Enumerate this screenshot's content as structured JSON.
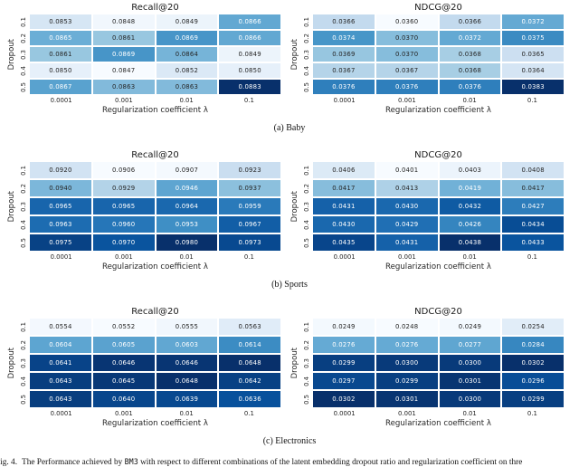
{
  "figure": {
    "subcaptions": [
      "(a) Baby",
      "(b) Sports",
      "(c) Electronics"
    ],
    "caption": {
      "label": "Fig. 4.",
      "before": "The Performance achieved by ",
      "model": "BM3",
      "after": " with respect to different combinations of the latent embedding dropout ratio and regularization coefficient on thre"
    }
  },
  "palette": {
    "colormap": "Blues",
    "blues_stops": [
      "#f7fbff",
      "#deebf7",
      "#c6dbef",
      "#9ecae1",
      "#6baed6",
      "#4292c6",
      "#2171b5",
      "#08519c",
      "#08306b"
    ],
    "dark_text": "#262626",
    "light_text": "#ffffff",
    "cell_gap": "#ffffff"
  },
  "chart_data": [
    {
      "type": "heatmap",
      "group": "Baby",
      "title": "Recall@20",
      "xlabel": "Regularization coefficient λ",
      "ylabel": "Dropout",
      "x": [
        "0.0001",
        "0.001",
        "0.01",
        "0.1"
      ],
      "y": [
        "0.1",
        "0.2",
        "0.3",
        "0.4",
        "0.5"
      ],
      "values": [
        [
          0.0853,
          0.0848,
          0.0849,
          0.0866
        ],
        [
          0.0865,
          0.0861,
          0.0869,
          0.0866
        ],
        [
          0.0861,
          0.0869,
          0.0864,
          0.0849
        ],
        [
          0.085,
          0.0847,
          0.0852,
          0.085
        ],
        [
          0.0867,
          0.0863,
          0.0863,
          0.0883
        ]
      ]
    },
    {
      "type": "heatmap",
      "group": "Baby",
      "title": "NDCG@20",
      "xlabel": "Regularization coefficient λ",
      "ylabel": "Dropout",
      "x": [
        "0.0001",
        "0.001",
        "0.01",
        "0.1"
      ],
      "y": [
        "0.1",
        "0.2",
        "0.3",
        "0.4",
        "0.5"
      ],
      "values": [
        [
          0.0366,
          0.036,
          0.0366,
          0.0372
        ],
        [
          0.0374,
          0.037,
          0.0372,
          0.0375
        ],
        [
          0.0369,
          0.037,
          0.0368,
          0.0365
        ],
        [
          0.0367,
          0.0367,
          0.0368,
          0.0364
        ],
        [
          0.0376,
          0.0376,
          0.0376,
          0.0383
        ]
      ]
    },
    {
      "type": "heatmap",
      "group": "Sports",
      "title": "Recall@20",
      "xlabel": "Regularization coefficient λ",
      "ylabel": "Dropout",
      "x": [
        "0.0001",
        "0.001",
        "0.01",
        "0.1"
      ],
      "y": [
        "0.1",
        "0.2",
        "0.3",
        "0.4",
        "0.5"
      ],
      "values": [
        [
          0.092,
          0.0906,
          0.0907,
          0.0923
        ],
        [
          0.094,
          0.0929,
          0.0946,
          0.0937
        ],
        [
          0.0965,
          0.0965,
          0.0964,
          0.0959
        ],
        [
          0.0963,
          0.096,
          0.0953,
          0.0967
        ],
        [
          0.0975,
          0.097,
          0.098,
          0.0973
        ]
      ]
    },
    {
      "type": "heatmap",
      "group": "Sports",
      "title": "NDCG@20",
      "xlabel": "Regularization coefficient λ",
      "ylabel": "Dropout",
      "x": [
        "0.0001",
        "0.001",
        "0.01",
        "0.1"
      ],
      "y": [
        "0.1",
        "0.2",
        "0.3",
        "0.4",
        "0.5"
      ],
      "values": [
        [
          0.0406,
          0.0401,
          0.0403,
          0.0408
        ],
        [
          0.0417,
          0.0413,
          0.0419,
          0.0417
        ],
        [
          0.0431,
          0.043,
          0.0432,
          0.0427
        ],
        [
          0.043,
          0.0429,
          0.0426,
          0.0434
        ],
        [
          0.0435,
          0.0431,
          0.0438,
          0.0433
        ]
      ]
    },
    {
      "type": "heatmap",
      "group": "Electronics",
      "title": "Recall@20",
      "xlabel": "Regularization coefficient λ",
      "ylabel": "Dropout",
      "x": [
        "0.0001",
        "0.001",
        "0.01",
        "0.1"
      ],
      "y": [
        "0.1",
        "0.2",
        "0.3",
        "0.4",
        "0.5"
      ],
      "values": [
        [
          0.0554,
          0.0552,
          0.0555,
          0.0563
        ],
        [
          0.0604,
          0.0605,
          0.0603,
          0.0614
        ],
        [
          0.0641,
          0.0646,
          0.0646,
          0.0648
        ],
        [
          0.0643,
          0.0645,
          0.0648,
          0.0642
        ],
        [
          0.0643,
          0.064,
          0.0639,
          0.0636
        ]
      ]
    },
    {
      "type": "heatmap",
      "group": "Electronics",
      "title": "NDCG@20",
      "xlabel": "Regularization coefficient λ",
      "ylabel": "Dropout",
      "x": [
        "0.0001",
        "0.001",
        "0.01",
        "0.1"
      ],
      "y": [
        "0.1",
        "0.2",
        "0.3",
        "0.4",
        "0.5"
      ],
      "values": [
        [
          0.0249,
          0.0248,
          0.0249,
          0.0254
        ],
        [
          0.0276,
          0.0276,
          0.0277,
          0.0284
        ],
        [
          0.0299,
          0.03,
          0.03,
          0.0302
        ],
        [
          0.0297,
          0.0299,
          0.0301,
          0.0296
        ],
        [
          0.0302,
          0.0301,
          0.03,
          0.0299
        ]
      ]
    }
  ]
}
